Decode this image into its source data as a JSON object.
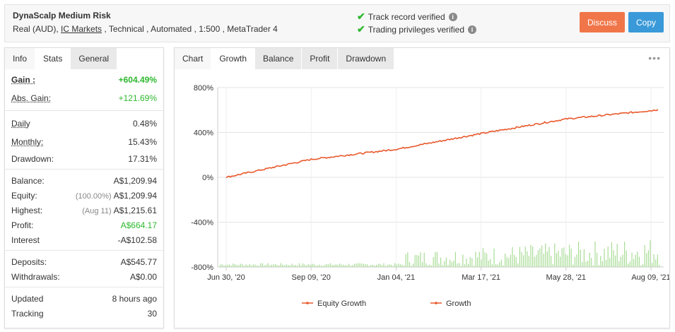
{
  "header": {
    "title": "DynaScalp Medium Risk",
    "meta_prefix": "Real (AUD), ",
    "broker": "IC Markets",
    "meta_suffix": " , Technical , Automated , 1:500 , MetaTrader 4",
    "verified_1": "Track record verified",
    "verified_2": "Trading privileges verified",
    "discuss_label": "Discuss",
    "copy_label": "Copy"
  },
  "colors": {
    "accent_orange": "#f0764a",
    "accent_blue": "#3a9ad9",
    "positive_green": "#2eb82e",
    "series_line": "#e8592c",
    "bar_green": "#a8dc95"
  },
  "left_tabs": [
    "Info",
    "Stats",
    "General"
  ],
  "stats": {
    "gain_label": "Gain :",
    "gain_value": "+604.49%",
    "abs_gain_label": "Abs. Gain:",
    "abs_gain_value": "+121.69%",
    "daily_label": "Daily",
    "daily_value": "0.48%",
    "monthly_label": "Monthly:",
    "monthly_value": "15.43%",
    "drawdown_label": "Drawdown:",
    "drawdown_value": "17.31%",
    "balance_label": "Balance:",
    "balance_value": "A$1,209.94",
    "equity_label": "Equity:",
    "equity_sub": "(100.00%)",
    "equity_value": "A$1,209.94",
    "highest_label": "Highest:",
    "highest_sub": "(Aug 11)",
    "highest_value": "A$1,215.61",
    "profit_label": "Profit:",
    "profit_value": "A$664.17",
    "interest_label": "Interest",
    "interest_value": "-A$102.58",
    "deposits_label": "Deposits:",
    "deposits_value": "A$545.77",
    "withdrawals_label": "Withdrawals:",
    "withdrawals_value": "A$0.00",
    "updated_label": "Updated",
    "updated_value": "8 hours ago",
    "tracking_label": "Tracking",
    "tracking_value": "30"
  },
  "right_tabs": [
    "Chart",
    "Growth",
    "Balance",
    "Profit",
    "Drawdown"
  ],
  "more_icon": "ellipsis-icon",
  "chart_data": {
    "type": "line",
    "y_ticks": [
      "800%",
      "400%",
      "0%",
      "-400%",
      "-800%"
    ],
    "ylim": [
      -800,
      800
    ],
    "x_ticks": [
      "Jun 30, '20",
      "Sep 09, '20",
      "Jan 04, '21",
      "Mar 17, '21",
      "May 28, '21",
      "Aug 09, '21"
    ],
    "grid": true,
    "legend_position": "bottom",
    "series": [
      {
        "name": "Equity Growth",
        "type": "line",
        "values": []
      },
      {
        "name": "Growth",
        "type": "line",
        "x": [
          "Jun 30, '20",
          "Sep 09, '20",
          "Jan 04, '21",
          "Mar 17, '21",
          "May 28, '21",
          "Aug 09, '21",
          "Aug 11, '21"
        ],
        "values": [
          0,
          160,
          250,
          390,
          520,
          595,
          604
        ]
      }
    ],
    "bars": {
      "name": "daily growth bars",
      "min_value": -800,
      "max_value": -530
    }
  }
}
